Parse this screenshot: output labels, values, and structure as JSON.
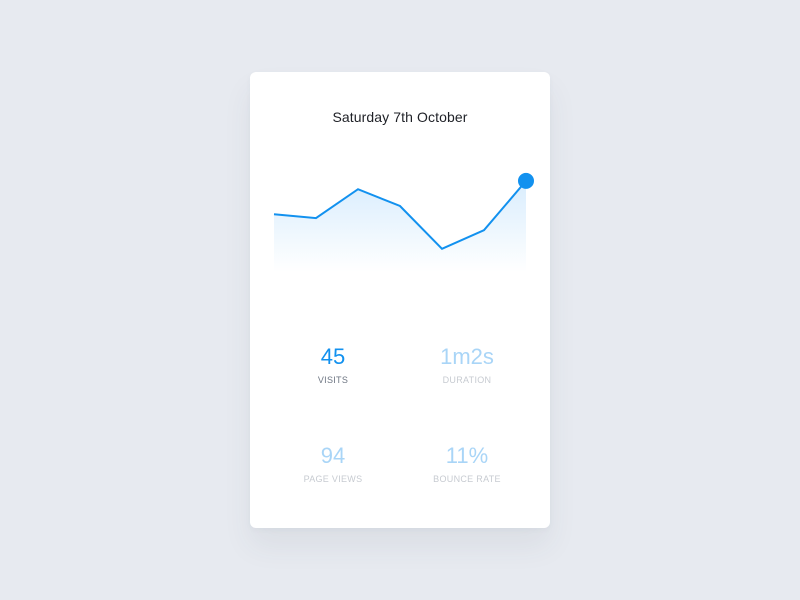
{
  "card": {
    "title": "Saturday 7th October"
  },
  "chart_data": {
    "type": "area",
    "title": "Saturday 7th October",
    "x": [
      1,
      2,
      3,
      4,
      5,
      6,
      7
    ],
    "series": [
      {
        "values": [
          62,
          58,
          89,
          71,
          25,
          45,
          98
        ]
      }
    ],
    "ylim": [
      0,
      100
    ],
    "grid": false,
    "highlight_index": 6,
    "colors": {
      "line": "#1291ef",
      "fill": "#d9edfd",
      "marker": "#1291ef"
    }
  },
  "stats": [
    {
      "value": "45",
      "label": "VISITS",
      "active": true
    },
    {
      "value": "1m2s",
      "label": "DURATION",
      "active": false
    },
    {
      "value": "94",
      "label": "PAGE VIEWS",
      "active": false
    },
    {
      "value": "11%",
      "label": "BOUNCE RATE",
      "active": false
    }
  ],
  "colors": {
    "background": "#e7eaf0",
    "card": "#ffffff",
    "accent": "#1291ef",
    "accent_dim": "#a9d5f7"
  }
}
